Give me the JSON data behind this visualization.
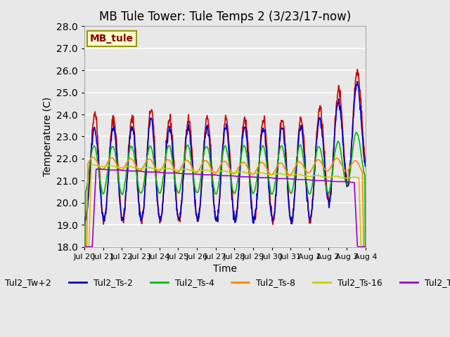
{
  "title": "MB Tule Tower: Tule Temps 2 (3/23/17-now)",
  "xlabel": "Time",
  "ylabel": "Temperature (C)",
  "ylim": [
    18.0,
    28.0
  ],
  "yticks": [
    18.0,
    19.0,
    20.0,
    21.0,
    22.0,
    23.0,
    24.0,
    25.0,
    26.0,
    27.0,
    28.0
  ],
  "x_labels": [
    "Jul 20",
    "Jul 21",
    "Jul 22",
    "Jul 23",
    "Jul 24",
    "Jul 25",
    "Jul 26",
    "Jul 27",
    "Jul 28",
    "Jul 29",
    "Jul 30",
    "Jul 31",
    "Aug 1",
    "Aug 2",
    "Aug 3",
    "Aug 4"
  ],
  "series_colors": {
    "Tul2_Tw+2": "#cc0000",
    "Tul2_Ts-2": "#0000cc",
    "Tul2_Ts-4": "#00bb00",
    "Tul2_Ts-8": "#ff8800",
    "Tul2_Ts-16": "#cccc00",
    "Tul2_Ts-32": "#9900cc"
  },
  "annotation_text": "MB_tule",
  "annotation_bg": "#ffffcc",
  "annotation_border": "#999900",
  "annotation_text_color": "#880000",
  "plot_bg_color": "#e8e8e8",
  "grid_color": "#ffffff",
  "title_fontsize": 12,
  "axis_fontsize": 10,
  "legend_fontsize": 9
}
